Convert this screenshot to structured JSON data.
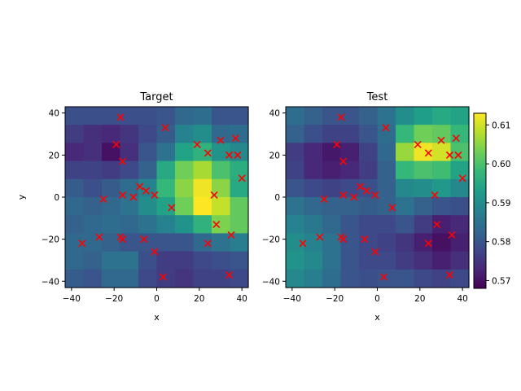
{
  "figure": {
    "background": "#ffffff"
  },
  "colormap": {
    "name": "viridis",
    "stops": [
      "#440154",
      "#482878",
      "#3e4989",
      "#31688e",
      "#26828e",
      "#1f9e89",
      "#35b779",
      "#6ece58",
      "#b5de2b",
      "#fde725"
    ]
  },
  "colorbar": {
    "range": [
      0.568,
      0.613
    ],
    "ticks": [
      "0.57",
      "0.58",
      "0.59",
      "0.60",
      "0.61"
    ],
    "tick_values": [
      0.57,
      0.58,
      0.59,
      0.6,
      0.61
    ]
  },
  "marker_color": "#ff0000",
  "chart_data": [
    {
      "type": "heatmap",
      "title": "Target",
      "xlabel": "x",
      "ylabel": "y",
      "xlim": [
        -43,
        43
      ],
      "ylim": [
        -43,
        43
      ],
      "xticks": [
        "−40",
        "−20",
        "0",
        "20",
        "40"
      ],
      "xtick_values": [
        -40,
        -20,
        0,
        20,
        40
      ],
      "yticks": [
        "−40",
        "−20",
        "0",
        "20",
        "40"
      ],
      "ytick_values": [
        -40,
        -20,
        0,
        20,
        40
      ],
      "grid_cells": 10,
      "grid": [
        [
          0.579,
          0.579,
          0.579,
          0.579,
          0.579,
          0.58,
          0.583,
          0.584,
          0.58,
          0.58
        ],
        [
          0.576,
          0.574,
          0.573,
          0.575,
          0.578,
          0.581,
          0.588,
          0.59,
          0.583,
          0.584
        ],
        [
          0.573,
          0.574,
          0.57,
          0.574,
          0.58,
          0.585,
          0.594,
          0.597,
          0.591,
          0.589
        ],
        [
          0.577,
          0.577,
          0.576,
          0.578,
          0.582,
          0.595,
          0.603,
          0.607,
          0.6,
          0.596
        ],
        [
          0.581,
          0.579,
          0.581,
          0.584,
          0.588,
          0.598,
          0.605,
          0.612,
          0.605,
          0.595
        ],
        [
          0.583,
          0.582,
          0.583,
          0.585,
          0.59,
          0.594,
          0.603,
          0.613,
          0.609,
          0.602
        ],
        [
          0.582,
          0.583,
          0.584,
          0.583,
          0.585,
          0.588,
          0.591,
          0.597,
          0.604,
          0.602
        ],
        [
          0.583,
          0.583,
          0.582,
          0.58,
          0.58,
          0.58,
          0.58,
          0.583,
          0.585,
          0.587
        ],
        [
          0.583,
          0.582,
          0.585,
          0.585,
          0.579,
          0.576,
          0.576,
          0.578,
          0.579,
          0.58
        ],
        [
          0.581,
          0.58,
          0.583,
          0.583,
          0.578,
          0.576,
          0.575,
          0.577,
          0.577,
          0.578
        ]
      ],
      "points": [
        [
          -17,
          38
        ],
        [
          4,
          33
        ],
        [
          -19,
          25
        ],
        [
          19,
          25
        ],
        [
          30,
          27
        ],
        [
          37,
          28
        ],
        [
          24,
          21
        ],
        [
          34,
          20
        ],
        [
          38,
          20
        ],
        [
          -16,
          17
        ],
        [
          40,
          9
        ],
        [
          -8,
          5
        ],
        [
          -5,
          3
        ],
        [
          -1,
          1
        ],
        [
          27,
          1
        ],
        [
          -16,
          1
        ],
        [
          -11,
          0
        ],
        [
          -25,
          -1
        ],
        [
          7,
          -5
        ],
        [
          28,
          -13
        ],
        [
          35,
          -18
        ],
        [
          -17,
          -19
        ],
        [
          -27,
          -19
        ],
        [
          -16,
          -20
        ],
        [
          -6,
          -20
        ],
        [
          24,
          -22
        ],
        [
          -35,
          -22
        ],
        [
          -1,
          -26
        ],
        [
          34,
          -37
        ],
        [
          3,
          -38
        ]
      ]
    },
    {
      "type": "heatmap",
      "title": "Test",
      "xlabel": "x",
      "ylabel": "",
      "xlim": [
        -43,
        43
      ],
      "ylim": [
        -43,
        43
      ],
      "xticks": [
        "−40",
        "−20",
        "0",
        "20",
        "40"
      ],
      "xtick_values": [
        -40,
        -20,
        0,
        20,
        40
      ],
      "yticks": [
        "−40",
        "−20",
        "0",
        "20",
        "40"
      ],
      "ytick_values": [
        -40,
        -20,
        0,
        20,
        40
      ],
      "grid_cells": 10,
      "grid": [
        [
          0.584,
          0.582,
          0.58,
          0.58,
          0.582,
          0.585,
          0.59,
          0.593,
          0.595,
          0.594
        ],
        [
          0.582,
          0.579,
          0.577,
          0.577,
          0.58,
          0.584,
          0.598,
          0.603,
          0.602,
          0.598
        ],
        [
          0.576,
          0.573,
          0.571,
          0.572,
          0.577,
          0.583,
          0.606,
          0.612,
          0.61,
          0.6
        ],
        [
          0.577,
          0.573,
          0.572,
          0.573,
          0.576,
          0.582,
          0.598,
          0.6,
          0.599,
          0.594
        ],
        [
          0.58,
          0.578,
          0.577,
          0.578,
          0.579,
          0.582,
          0.589,
          0.59,
          0.592,
          0.589
        ],
        [
          0.585,
          0.583,
          0.582,
          0.582,
          0.581,
          0.582,
          0.585,
          0.582,
          0.58,
          0.579
        ],
        [
          0.588,
          0.586,
          0.583,
          0.58,
          0.578,
          0.578,
          0.58,
          0.576,
          0.572,
          0.573
        ],
        [
          0.59,
          0.588,
          0.585,
          0.58,
          0.578,
          0.577,
          0.575,
          0.572,
          0.57,
          0.572
        ],
        [
          0.591,
          0.589,
          0.585,
          0.58,
          0.578,
          0.578,
          0.576,
          0.574,
          0.572,
          0.574
        ],
        [
          0.589,
          0.587,
          0.584,
          0.58,
          0.579,
          0.58,
          0.58,
          0.578,
          0.577,
          0.578
        ]
      ],
      "points": [
        [
          -17,
          38
        ],
        [
          4,
          33
        ],
        [
          -19,
          25
        ],
        [
          19,
          25
        ],
        [
          30,
          27
        ],
        [
          37,
          28
        ],
        [
          24,
          21
        ],
        [
          34,
          20
        ],
        [
          38,
          20
        ],
        [
          -16,
          17
        ],
        [
          40,
          9
        ],
        [
          -8,
          5
        ],
        [
          -5,
          3
        ],
        [
          -1,
          1
        ],
        [
          27,
          1
        ],
        [
          -16,
          1
        ],
        [
          -11,
          0
        ],
        [
          -25,
          -1
        ],
        [
          7,
          -5
        ],
        [
          28,
          -13
        ],
        [
          35,
          -18
        ],
        [
          -17,
          -19
        ],
        [
          -27,
          -19
        ],
        [
          -16,
          -20
        ],
        [
          -6,
          -20
        ],
        [
          24,
          -22
        ],
        [
          -35,
          -22
        ],
        [
          -1,
          -26
        ],
        [
          34,
          -37
        ],
        [
          3,
          -38
        ]
      ]
    }
  ]
}
